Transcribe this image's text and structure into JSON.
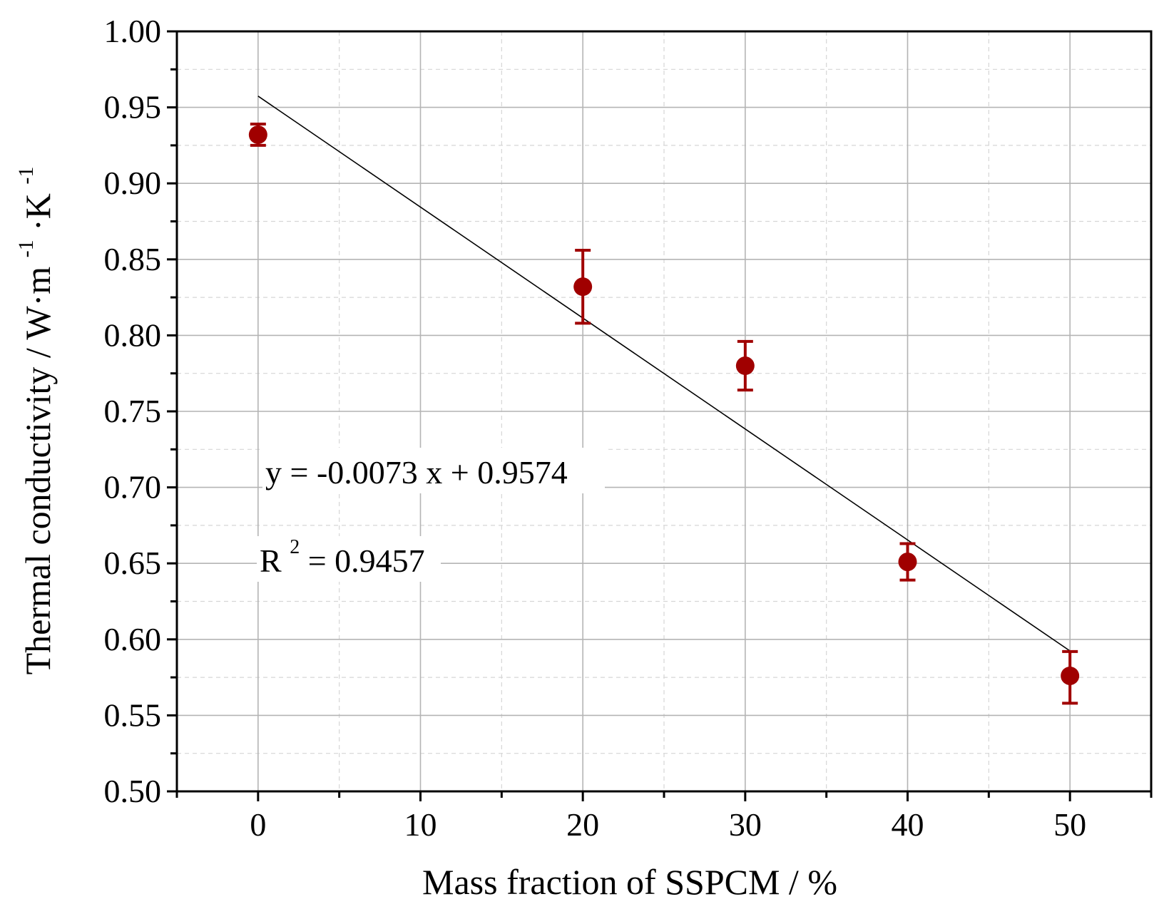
{
  "chart_data": {
    "type": "scatter",
    "title": "",
    "xlabel": "Mass fraction of SSPCM / %",
    "ylabel_main": "Thermal conductivity / W·m",
    "ylabel_sup1": "-1",
    "ylabel_mid": "·K",
    "ylabel_sup2": "-1",
    "xlim": [
      -5,
      55
    ],
    "ylim": [
      0.5,
      1.0
    ],
    "x_ticks": [
      0,
      10,
      20,
      30,
      40,
      50
    ],
    "x_tick_labels": [
      "0",
      "10",
      "20",
      "30",
      "40",
      "50"
    ],
    "y_ticks": [
      0.5,
      0.55,
      0.6,
      0.65,
      0.7,
      0.75,
      0.8,
      0.85,
      0.9,
      0.95,
      1.0
    ],
    "y_tick_labels": [
      "0.50",
      "0.55",
      "0.60",
      "0.65",
      "0.70",
      "0.75",
      "0.80",
      "0.85",
      "0.90",
      "0.95",
      "1.00"
    ],
    "grid": true,
    "series": [
      {
        "name": "Thermal conductivity",
        "color": "#a00000",
        "points": [
          {
            "x": 0,
            "y": 0.932,
            "err_low": 0.925,
            "err_high": 0.939
          },
          {
            "x": 20,
            "y": 0.832,
            "err_low": 0.808,
            "err_high": 0.856
          },
          {
            "x": 30,
            "y": 0.78,
            "err_low": 0.764,
            "err_high": 0.796
          },
          {
            "x": 40,
            "y": 0.651,
            "err_low": 0.639,
            "err_high": 0.663
          },
          {
            "x": 50,
            "y": 0.576,
            "err_low": 0.558,
            "err_high": 0.592
          }
        ]
      }
    ],
    "fit": {
      "slope": -0.0073,
      "intercept": 0.9574,
      "x_range": [
        0,
        50
      ],
      "color": "#000000"
    },
    "annotations": {
      "equation": "y = -0.0073 x + 0.9574",
      "r2_prefix": "R",
      "r2_sup": "2",
      "r2_value": " = 0.9457"
    }
  }
}
